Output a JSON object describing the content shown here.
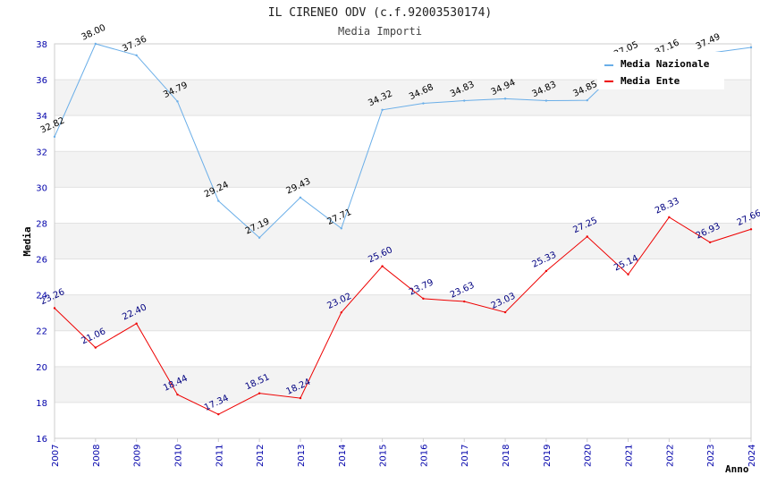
{
  "chart_data": {
    "type": "line",
    "title": "IL CIRENEO ODV (c.f.92003530174)",
    "subtitle": "Media Importi",
    "xlabel": "Anno",
    "ylabel": "Media",
    "ylim": [
      16,
      38
    ],
    "yticks": [
      "16",
      "18",
      "20",
      "22",
      "24",
      "26",
      "28",
      "30",
      "32",
      "34",
      "36",
      "38"
    ],
    "categories": [
      "2007",
      "2008",
      "2009",
      "2010",
      "2011",
      "2012",
      "2013",
      "2014",
      "2015",
      "2016",
      "2017",
      "2018",
      "2019",
      "2020",
      "2021",
      "2022",
      "2023",
      "2024"
    ],
    "grid": "horizontal-bands",
    "legend_position": "top-right",
    "series": [
      {
        "name": "Media Nazionale",
        "color": "#6aaee8",
        "values": [
          32.82,
          38.0,
          37.36,
          34.79,
          29.24,
          27.19,
          29.43,
          27.71,
          34.32,
          34.68,
          34.83,
          34.94,
          34.83,
          34.85,
          37.05,
          37.16,
          37.49,
          37.8
        ],
        "labels": [
          "32.82",
          "38.00",
          "37.36",
          "34.79",
          "29.24",
          "27.19",
          "29.43",
          "27.71",
          "34.32",
          "34.68",
          "34.83",
          "34.94",
          "34.83",
          "34.85",
          "37.05",
          "37.16",
          "37.49",
          ""
        ]
      },
      {
        "name": "Media Ente",
        "color": "#ee0000",
        "values": [
          23.26,
          21.06,
          22.4,
          18.44,
          17.34,
          18.51,
          18.24,
          23.02,
          25.6,
          23.79,
          23.63,
          23.03,
          25.33,
          27.25,
          25.14,
          28.33,
          26.93,
          27.66
        ],
        "labels": [
          "23.26",
          "21.06",
          "22.40",
          "18.44",
          "17.34",
          "18.51",
          "18.24",
          "23.02",
          "25.60",
          "23.79",
          "23.63",
          "23.03",
          "25.33",
          "27.25",
          "25.14",
          "28.33",
          "26.93",
          "27.66"
        ]
      }
    ]
  }
}
